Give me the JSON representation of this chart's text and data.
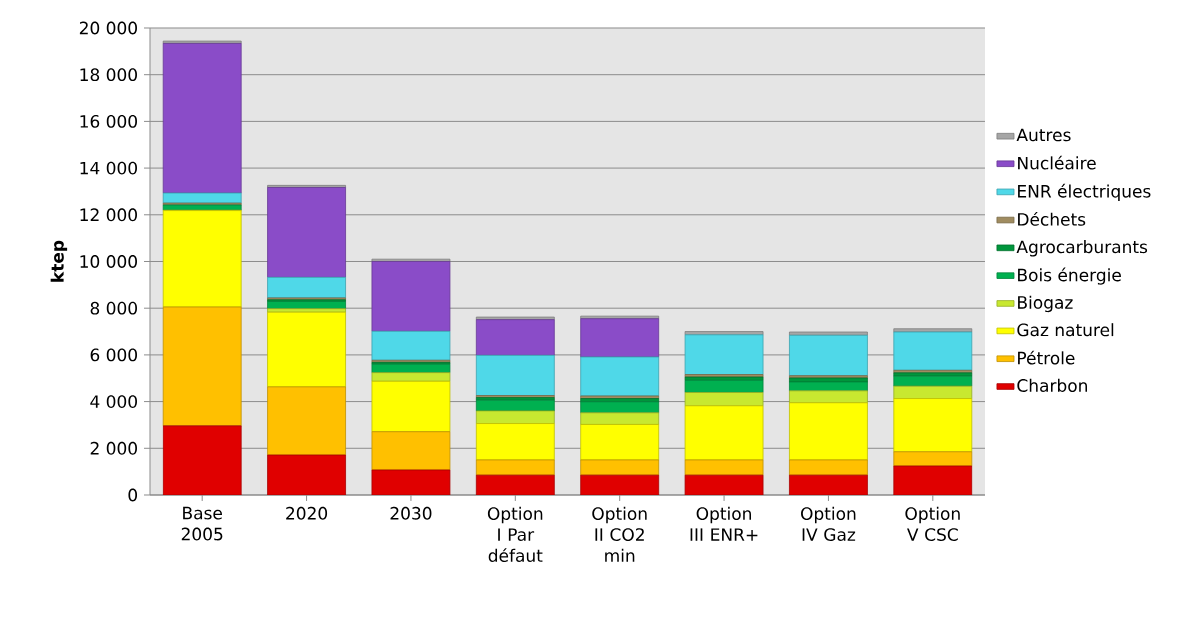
{
  "chart_data": {
    "type": "bar",
    "stacked": true,
    "ylabel": "ktep",
    "grid": "y",
    "legend": "right",
    "categories": [
      "Base 2005",
      "2020",
      "2030",
      "Option I Par défaut",
      "Option II CO2 min",
      "Option III ENR+",
      "Option IV Gaz",
      "Option V CSC"
    ],
    "ylim": [
      0,
      20000
    ],
    "yticks": [
      0,
      {
        "value": 2000,
        "label": "2 000"
      },
      {
        "value": 4000,
        "label": "4 000"
      },
      {
        "value": 6000,
        "label": "6 000"
      },
      {
        "value": 8000,
        "label": "8 000"
      },
      {
        "value": 10000,
        "label": "10 000"
      },
      {
        "value": 12000,
        "label": "12 000"
      },
      {
        "value": 14000,
        "label": "14 000"
      },
      {
        "value": 16000,
        "label": "16 000"
      },
      {
        "value": 18000,
        "label": "18 000"
      },
      {
        "value": 20000,
        "label": "20 000"
      }
    ],
    "series": [
      {
        "name": "Charbon",
        "color": "#e00000",
        "values": [
          2960,
          1710,
          1070,
          850,
          850,
          850,
          850,
          1240
        ]
      },
      {
        "name": "Pétrole",
        "color": "#ffc000",
        "values": [
          5090,
          2920,
          1640,
          650,
          650,
          650,
          650,
          610
        ]
      },
      {
        "name": "Gaz naturel",
        "color": "#ffff00",
        "values": [
          4130,
          3200,
          2160,
          1560,
          1520,
          2320,
          2450,
          2280
        ]
      },
      {
        "name": "Biogaz",
        "color": "#c8e830",
        "values": [
          20,
          150,
          370,
          540,
          500,
          570,
          510,
          530
        ]
      },
      {
        "name": "Bois énergie",
        "color": "#00b050",
        "values": [
          220,
          310,
          360,
          460,
          470,
          520,
          380,
          430
        ]
      },
      {
        "name": "Agrocarburants",
        "color": "#00963c",
        "values": [
          null,
          70,
          80,
          110,
          140,
          140,
          170,
          140
        ]
      },
      {
        "name": "Déchets",
        "color": "#a08c60",
        "values": [
          80,
          80,
          90,
          90,
          110,
          110,
          100,
          110
        ]
      },
      {
        "name": "ENR électriques",
        "color": "#4fd8e8",
        "values": [
          430,
          880,
          1240,
          1720,
          1670,
          1700,
          1730,
          1640
        ]
      },
      {
        "name": "Nucléaire",
        "color": "#8a4cc8",
        "values": [
          6410,
          3850,
          2990,
          1530,
          1640,
          0,
          0,
          0
        ]
      },
      {
        "name": "Autres",
        "color": "#a6a6a6",
        "values": [
          100,
          90,
          100,
          110,
          110,
          140,
          140,
          140
        ]
      }
    ]
  }
}
